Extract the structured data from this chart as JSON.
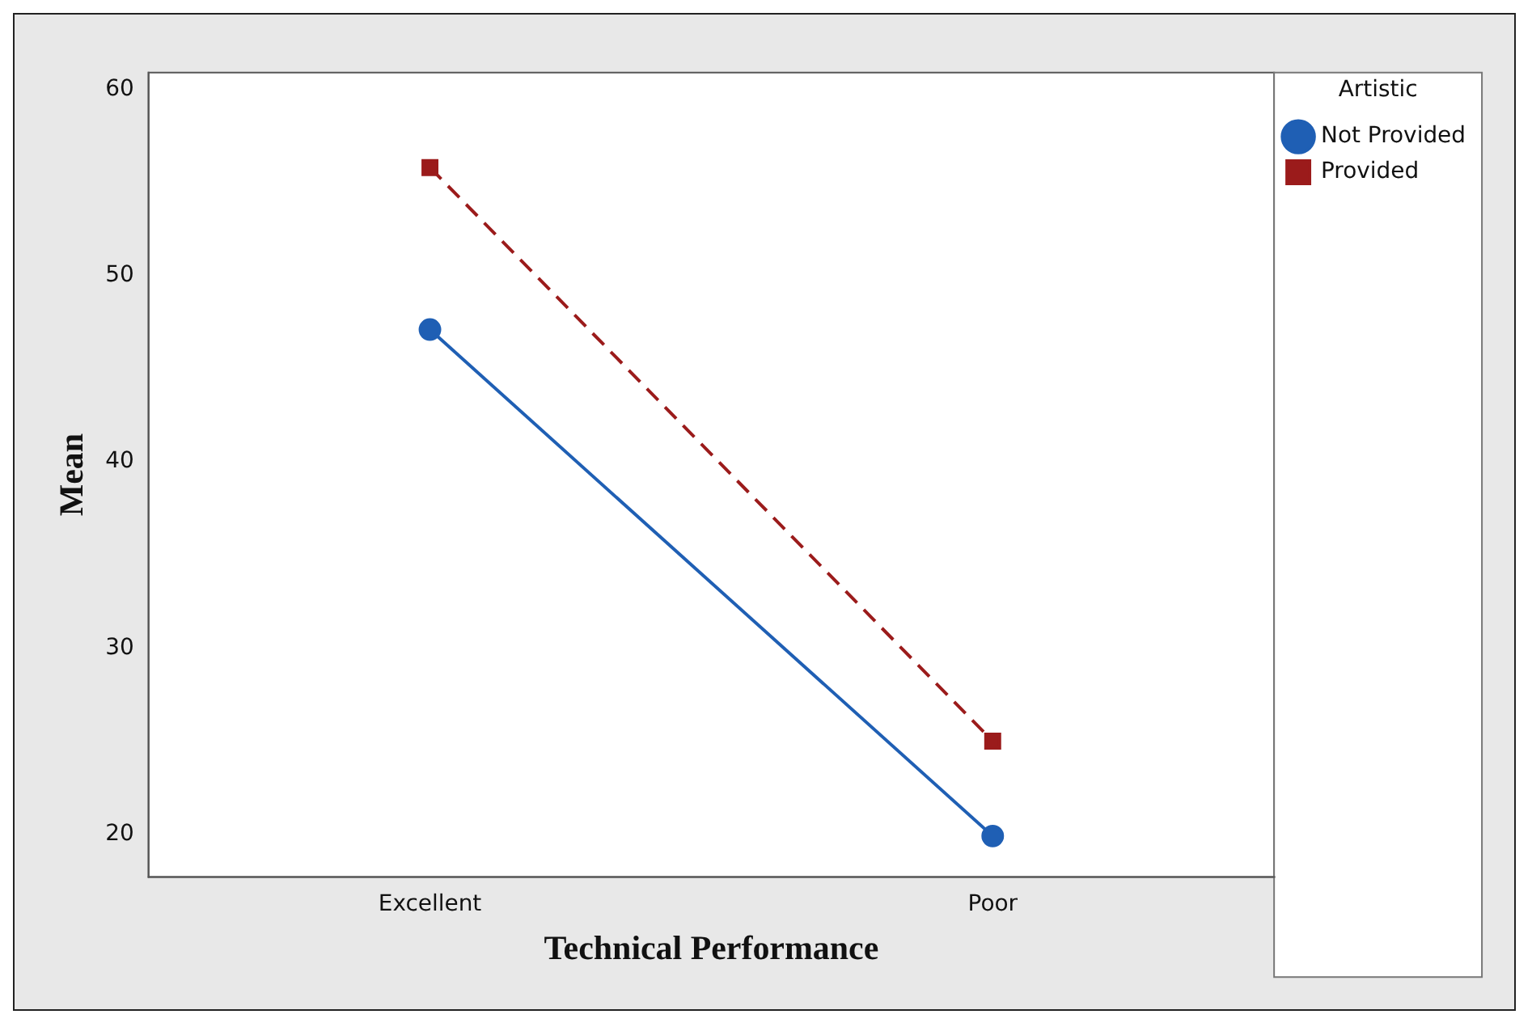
{
  "chart_data": {
    "type": "line",
    "xlabel": "Technical Performance",
    "ylabel": "Mean",
    "legend_title": "Artistic",
    "legend": "top right",
    "grid": false,
    "categories": [
      "Excellent",
      "Poor"
    ],
    "series": [
      {
        "name": "Not Provided",
        "color": "#1f5fb4",
        "values": [
          47.1,
          19.9
        ],
        "marker": "circle",
        "line_style": "solid"
      },
      {
        "name": "Provided",
        "color": "#9b1b1b",
        "values": [
          55.8,
          25
        ],
        "marker": "square",
        "line_style": "dashed"
      }
    ],
    "ylim": [
      17.7,
      60.9
    ],
    "yticks": [
      20,
      30,
      40,
      50,
      60
    ]
  }
}
